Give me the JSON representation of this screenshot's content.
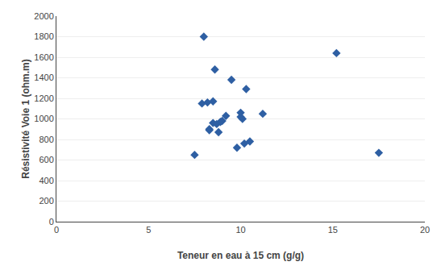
{
  "chart_data": {
    "type": "scatter",
    "x": [
      7.5,
      7.9,
      8.0,
      8.2,
      8.3,
      8.3,
      8.5,
      8.5,
      8.6,
      8.7,
      8.8,
      8.9,
      9.0,
      9.2,
      9.5,
      9.8,
      10.0,
      10.0,
      10.1,
      10.2,
      10.3,
      10.5,
      11.2,
      15.2,
      17.5
    ],
    "values": [
      650,
      1150,
      1800,
      1160,
      900,
      890,
      960,
      1170,
      1480,
      950,
      870,
      970,
      980,
      1030,
      1380,
      720,
      1060,
      1020,
      1000,
      760,
      1290,
      780,
      1050,
      1640,
      670
    ],
    "xlabel": "Teneur en eau à 15 cm (g/g)",
    "ylabel": "Résistivité Voie 1 (ohm.m)",
    "xlim": [
      0,
      20
    ],
    "ylim": [
      0,
      2000
    ],
    "xticks": [
      0,
      5,
      10,
      15,
      20
    ],
    "yticks": [
      0,
      200,
      400,
      600,
      800,
      1000,
      1200,
      1400,
      1600,
      1800,
      2000
    ],
    "color": "#2E5FA3",
    "marker": "diamond",
    "grid": "y"
  }
}
